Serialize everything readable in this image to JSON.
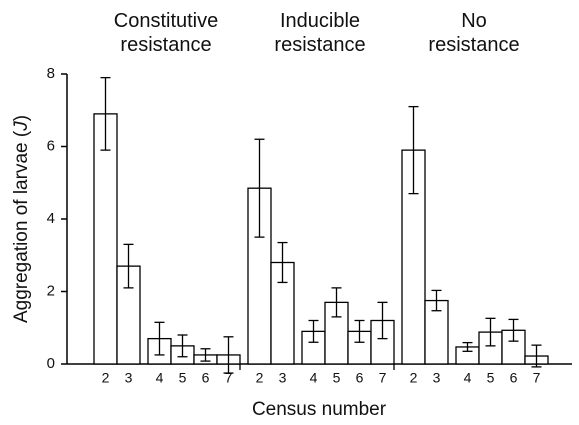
{
  "chart_data": {
    "type": "bar",
    "categories": [
      "2",
      "3",
      "4",
      "5",
      "6",
      "7"
    ],
    "series": [
      {
        "name": [
          "Constitutive",
          "resistance"
        ],
        "color": "#ffffff",
        "values": [
          6.9,
          2.7,
          0.7,
          0.5,
          0.25,
          0.25
        ],
        "errors": [
          1.0,
          0.6,
          0.45,
          0.3,
          0.17,
          0.5
        ]
      },
      {
        "name": [
          "Inducible",
          "resistance"
        ],
        "color": "#ffffff",
        "values": [
          4.85,
          2.8,
          0.9,
          1.7,
          0.9,
          1.2
        ],
        "errors": [
          1.35,
          0.55,
          0.3,
          0.4,
          0.3,
          0.5
        ]
      },
      {
        "name": [
          "No",
          "resistance"
        ],
        "color": "#ffffff",
        "values": [
          5.9,
          1.75,
          0.47,
          0.88,
          0.93,
          0.22
        ],
        "errors": [
          1.2,
          0.28,
          0.12,
          0.38,
          0.3,
          0.3
        ]
      }
    ],
    "x_label": "Census number",
    "y_label": [
      "Aggregation of larvae (",
      "J",
      ")"
    ],
    "ylim": [
      0,
      8
    ],
    "yticks": [
      0,
      2,
      4,
      6,
      8
    ]
  }
}
